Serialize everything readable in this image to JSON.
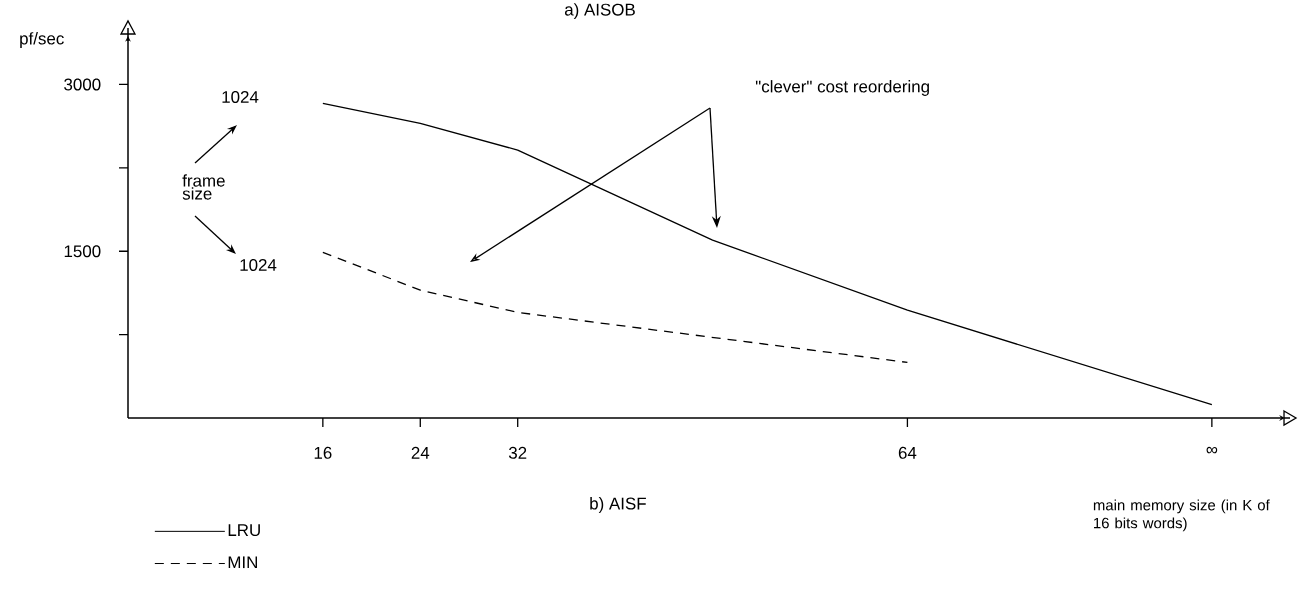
{
  "chart_data": {
    "type": "line",
    "xlabel": "main memory size (in K of 16 bits words)",
    "ylabel": "pf/sec",
    "xlim": [
      0,
      95
    ],
    "ylim": [
      0,
      3400
    ],
    "xticks": [
      16,
      24,
      32,
      64,
      {
        "value": 89,
        "label": "∞"
      }
    ],
    "yticks": [
      {
        "value": 750,
        "label": null
      },
      1500,
      {
        "value": 2250,
        "label": null
      },
      3000
    ],
    "legend": "bottom left",
    "grid": false,
    "marker": "none",
    "series": [
      {
        "name": "LRU",
        "color": "#000000",
        "line_style": "solid",
        "x": [
          16,
          24,
          32,
          48,
          64,
          89
        ],
        "values": [
          2830,
          2650,
          2410,
          1600,
          970,
          120
        ]
      },
      {
        "name": "MIN",
        "color": "#000000",
        "line_style": "dashed",
        "x": [
          16,
          24,
          32,
          64
        ],
        "values": [
          1490,
          1150,
          950,
          500
        ]
      }
    ],
    "annotations": [
      "a) AISOB",
      "1024",
      "frame size",
      "1024",
      "\"clever\" cost reordering",
      "b) AISF"
    ]
  }
}
